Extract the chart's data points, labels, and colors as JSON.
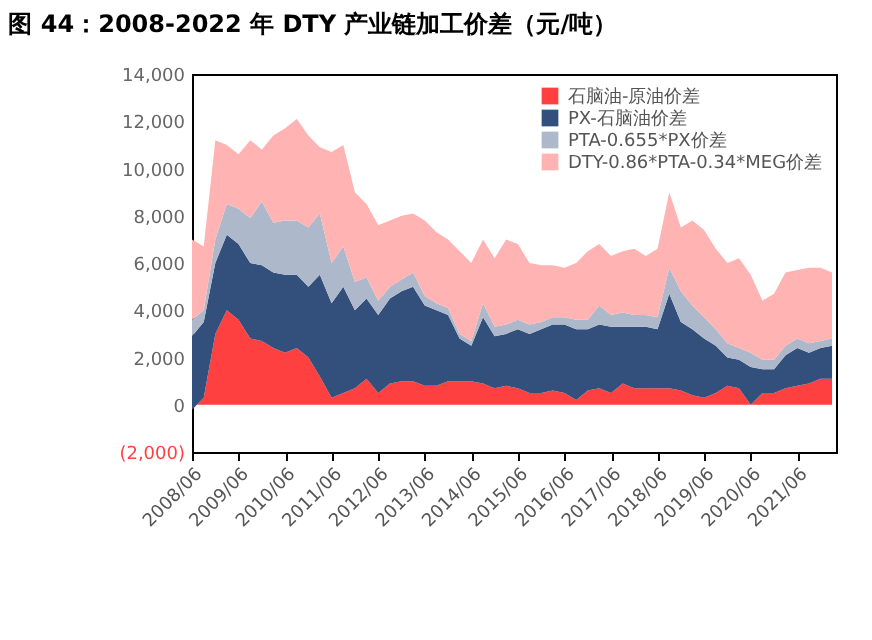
{
  "chart_data": {
    "type": "area",
    "stacked": true,
    "title": "图 44：2008-2022 年 DTY 产业链加工价差（元/吨）",
    "x": [
      "2008-06",
      "2008-09",
      "2008-12",
      "2009-03",
      "2009-06",
      "2009-09",
      "2009-12",
      "2010-03",
      "2010-06",
      "2010-09",
      "2010-12",
      "2011-03",
      "2011-06",
      "2011-09",
      "2011-12",
      "2012-03",
      "2012-06",
      "2012-09",
      "2012-12",
      "2013-03",
      "2013-06",
      "2013-09",
      "2013-12",
      "2014-03",
      "2014-06",
      "2014-09",
      "2014-12",
      "2015-03",
      "2015-06",
      "2015-09",
      "2015-12",
      "2016-03",
      "2016-06",
      "2016-09",
      "2016-12",
      "2017-03",
      "2017-06",
      "2017-09",
      "2017-12",
      "2018-03",
      "2018-06",
      "2018-09",
      "2018-12",
      "2019-03",
      "2019-06",
      "2019-09",
      "2019-12",
      "2020-03",
      "2020-06",
      "2020-09",
      "2020-12",
      "2021-03",
      "2021-06",
      "2021-09",
      "2021-12",
      "2022-03"
    ],
    "series": [
      {
        "name": "石脑油-原油价差",
        "color": "#ff4040",
        "values": [
          -200,
          300,
          3000,
          4000,
          3600,
          2800,
          2700,
          2400,
          2200,
          2400,
          2000,
          1200,
          300,
          500,
          700,
          1100,
          500,
          900,
          1000,
          1000,
          800,
          800,
          1000,
          1000,
          1000,
          900,
          700,
          800,
          700,
          500,
          500,
          600,
          500,
          200,
          600,
          700,
          500,
          900,
          700,
          700,
          700,
          700,
          600,
          400,
          300,
          500,
          800,
          700,
          0,
          500,
          500,
          700,
          800,
          900,
          1100,
          1100
        ]
      },
      {
        "name": "PX-石脑油价差",
        "color": "#334f7c",
        "values": [
          3100,
          3200,
          3000,
          3200,
          3200,
          3200,
          3200,
          3200,
          3300,
          3100,
          3000,
          4300,
          4000,
          4500,
          3300,
          3400,
          3300,
          3600,
          3800,
          4000,
          3400,
          3200,
          2800,
          1800,
          1500,
          2800,
          2200,
          2200,
          2500,
          2500,
          2700,
          2800,
          2900,
          3000,
          2600,
          2700,
          2800,
          2400,
          2600,
          2600,
          2500,
          4000,
          2900,
          2800,
          2500,
          2000,
          1200,
          1200,
          1600,
          1000,
          1000,
          1400,
          1600,
          1300,
          1300,
          1400
        ]
      },
      {
        "name": "PTA-0.655*PX价差",
        "color": "#adb9ca",
        "values": [
          700,
          500,
          1000,
          1300,
          1500,
          1900,
          2700,
          2100,
          2300,
          2300,
          2500,
          2600,
          1700,
          1700,
          1200,
          900,
          600,
          500,
          500,
          600,
          400,
          300,
          300,
          200,
          200,
          600,
          400,
          400,
          400,
          400,
          300,
          300,
          300,
          400,
          400,
          800,
          500,
          600,
          500,
          500,
          500,
          1100,
          1300,
          1000,
          900,
          700,
          600,
          500,
          600,
          400,
          400,
          400,
          400,
          400,
          300,
          300
        ]
      },
      {
        "name": "DTY-0.86*PTA-0.34*MEG价差",
        "color": "#ffb3b3",
        "values": [
          3400,
          2700,
          4200,
          2500,
          2300,
          3300,
          2200,
          3700,
          3900,
          4300,
          3900,
          2800,
          4700,
          4300,
          3800,
          3100,
          3200,
          2800,
          2700,
          2500,
          3200,
          3000,
          2900,
          3500,
          3300,
          2700,
          2900,
          3600,
          3200,
          2600,
          2400,
          2200,
          2100,
          2400,
          2900,
          2600,
          2500,
          2600,
          2800,
          2500,
          2900,
          3200,
          2700,
          3600,
          3700,
          3400,
          3400,
          3800,
          3300,
          2500,
          2800,
          3100,
          2900,
          3200,
          3100,
          2800
        ]
      }
    ],
    "xlim": [
      "2008-06",
      "2022-04"
    ],
    "xticks": [
      {
        "value": "2008-06",
        "label": "2008/06"
      },
      {
        "value": "2009-06",
        "label": "2009/06"
      },
      {
        "value": "2010-06",
        "label": "2010/06"
      },
      {
        "value": "2011-06",
        "label": "2011/06"
      },
      {
        "value": "2012-06",
        "label": "2012/06"
      },
      {
        "value": "2013-06",
        "label": "2013/06"
      },
      {
        "value": "2014-06",
        "label": "2014/06"
      },
      {
        "value": "2015-06",
        "label": "2015/06"
      },
      {
        "value": "2016-06",
        "label": "2016/06"
      },
      {
        "value": "2017-06",
        "label": "2017/06"
      },
      {
        "value": "2018-06",
        "label": "2018/06"
      },
      {
        "value": "2019-06",
        "label": "2019/06"
      },
      {
        "value": "2020-06",
        "label": "2020/06"
      },
      {
        "value": "2021-06",
        "label": "2021/06"
      }
    ],
    "ylim": [
      -2000,
      14000
    ],
    "yticks": [
      {
        "value": -2000,
        "label": "(2,000)"
      },
      {
        "value": 0,
        "label": "0"
      },
      {
        "value": 2000,
        "label": "2,000"
      },
      {
        "value": 4000,
        "label": "4,000"
      },
      {
        "value": 6000,
        "label": "6,000"
      },
      {
        "value": 8000,
        "label": "8,000"
      },
      {
        "value": 10000,
        "label": "10,000"
      },
      {
        "value": 12000,
        "label": "12,000"
      },
      {
        "value": 14000,
        "label": "14,000"
      }
    ],
    "grid": false,
    "legend": "top right"
  }
}
